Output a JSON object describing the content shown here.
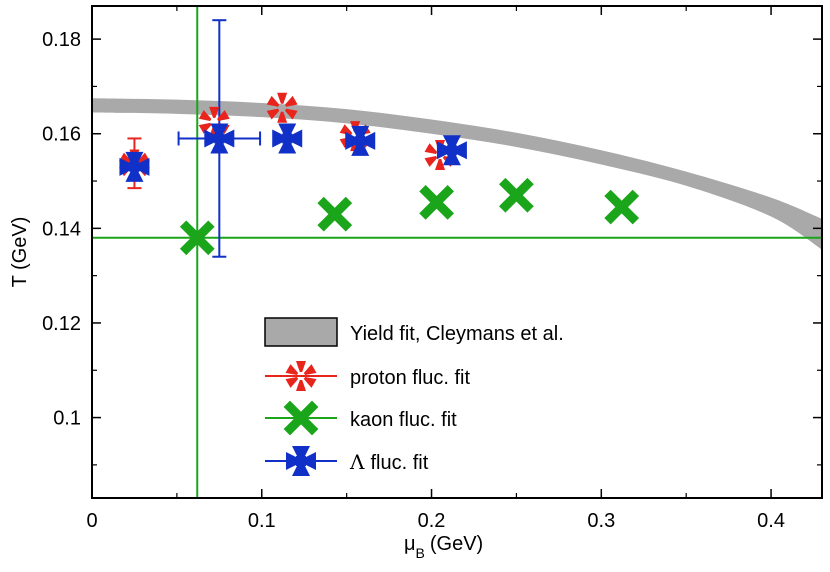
{
  "chart_data": {
    "type": "scatter",
    "title": "",
    "xlabel": "μ_B (GeV)",
    "xlabel_main": "μ",
    "xlabel_sub": "B",
    "xlabel_unit": "(GeV)",
    "ylabel": "T (GeV)",
    "xlim": [
      0,
      0.43
    ],
    "ylim": [
      0.083,
      0.187
    ],
    "xticks": [
      0,
      0.1,
      0.2,
      0.3,
      0.4
    ],
    "xtick_labels": [
      "0",
      "0.1",
      "0.2",
      "0.3",
      "0.4"
    ],
    "yticks": [
      0.1,
      0.12,
      0.14,
      0.16,
      0.18
    ],
    "ytick_labels": [
      "0.1",
      "0.12",
      "0.14",
      "0.16",
      "0.18"
    ],
    "legend_position": "bottom-center",
    "band": {
      "name": "Yield fit, Cleymans et al.",
      "color": "#a9a9a9",
      "x": [
        0,
        0.05,
        0.1,
        0.15,
        0.2,
        0.25,
        0.3,
        0.35,
        0.4,
        0.43
      ],
      "upper": [
        0.1675,
        0.1672,
        0.1665,
        0.1652,
        0.163,
        0.1602,
        0.1565,
        0.152,
        0.1465,
        0.142
      ],
      "lower": [
        0.1645,
        0.1642,
        0.1635,
        0.1622,
        0.16,
        0.1572,
        0.1535,
        0.149,
        0.1425,
        0.1355
      ]
    },
    "series": [
      {
        "name": "proton fluc. fit",
        "color": "#e8241c",
        "marker": "asterisk",
        "points": [
          {
            "x": 0.025,
            "y": 0.1535,
            "yerr": [
              0.005,
              0.0055
            ]
          },
          {
            "x": 0.072,
            "y": 0.1625
          },
          {
            "x": 0.112,
            "y": 0.1655
          },
          {
            "x": 0.155,
            "y": 0.1595
          },
          {
            "x": 0.205,
            "y": 0.1555
          }
        ]
      },
      {
        "name": "kaon fluc. fit",
        "color": "#1aa51a",
        "marker": "x",
        "points": [
          {
            "x": 0.062,
            "y": 0.138,
            "xerr": [
              0.43,
              0.43
            ],
            "yerr": [
              0.06,
              0.049
            ]
          },
          {
            "x": 0.143,
            "y": 0.143
          },
          {
            "x": 0.203,
            "y": 0.1455
          },
          {
            "x": 0.25,
            "y": 0.147
          },
          {
            "x": 0.312,
            "y": 0.1445
          }
        ]
      },
      {
        "name": "Λ fluc. fit",
        "legend_symbol": "Λ",
        "legend_suffix": "fluc. fit",
        "color": "#1030c8",
        "marker": "star",
        "points": [
          {
            "x": 0.025,
            "y": 0.153
          },
          {
            "x": 0.075,
            "y": 0.159,
            "xerr": [
              0.024,
              0.024
            ],
            "yerr": [
              0.025,
              0.025
            ]
          },
          {
            "x": 0.115,
            "y": 0.159
          },
          {
            "x": 0.158,
            "y": 0.1585
          },
          {
            "x": 0.212,
            "y": 0.1565
          }
        ]
      }
    ]
  }
}
